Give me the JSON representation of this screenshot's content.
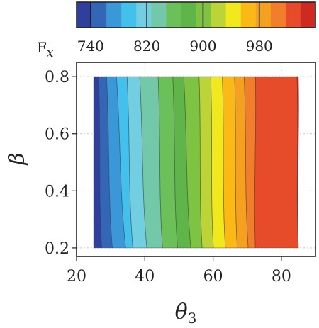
{
  "chart_data": {
    "type": "contour",
    "xlabel": "θ3",
    "ylabel": "β",
    "xlim": [
      20,
      90
    ],
    "ylim": [
      0.17,
      0.85
    ],
    "x_ticks": [
      "20",
      "40",
      "60",
      "80"
    ],
    "y_ticks": [
      "0.8",
      "0.6",
      "0.4",
      "0.2"
    ],
    "data_x_range": [
      25,
      85
    ],
    "data_y_range": [
      0.2,
      0.8
    ],
    "grid": true,
    "colorbar": {
      "label_main": "F",
      "label_sub": "x",
      "min": 720,
      "max": 1060,
      "tick_labels": [
        "740",
        "820",
        "900",
        "980"
      ],
      "level_colors": [
        "#2e3f9e",
        "#3466b8",
        "#3a98d8",
        "#43c0ec",
        "#72cfe2",
        "#72c8a8",
        "#6cc05a",
        "#5fb54a",
        "#7fc342",
        "#bcd438",
        "#f2e81e",
        "#fbb916",
        "#f6a020",
        "#f17e2a",
        "#e64b2a",
        "#cf2a22"
      ]
    },
    "contour_levels": [
      740,
      760,
      780,
      800,
      820,
      840,
      860,
      880,
      900,
      920,
      940,
      960,
      980,
      1000,
      1020,
      1040
    ],
    "bands": [
      {
        "level_low": 720,
        "bottom_x": 27.4,
        "top_x": 26.5
      },
      {
        "level_low": 740,
        "bottom_x": 30.5,
        "top_x": 28.8
      },
      {
        "level_low": 760,
        "bottom_x": 34.4,
        "top_x": 31.7
      },
      {
        "level_low": 780,
        "bottom_x": 36.5,
        "top_x": 34.8
      },
      {
        "level_low": 800,
        "bottom_x": 40.6,
        "top_x": 38.5
      },
      {
        "level_low": 820,
        "bottom_x": 45.2,
        "top_x": 43.9
      },
      {
        "level_low": 840,
        "bottom_x": 49.6,
        "top_x": 48.2
      },
      {
        "level_low": 860,
        "bottom_x": 53.5,
        "top_x": 51.4
      },
      {
        "level_low": 880,
        "bottom_x": 56.8,
        "top_x": 55.9
      },
      {
        "level_low": 900,
        "bottom_x": 60.1,
        "top_x": 59.3
      },
      {
        "level_low": 920,
        "bottom_x": 63.6,
        "top_x": 62.7
      },
      {
        "level_low": 940,
        "bottom_x": 67.1,
        "top_x": 66.3
      },
      {
        "level_low": 960,
        "bottom_x": 70.3,
        "top_x": 69.1
      },
      {
        "level_low": 980,
        "bottom_x": 72.4,
        "top_x": 72.4
      },
      {
        "level_low": 1000,
        "bottom_x": 85.0,
        "top_x": 84.6
      },
      {
        "level_low": 1020,
        "bottom_x": 85.0,
        "top_x": 85.0
      }
    ]
  }
}
